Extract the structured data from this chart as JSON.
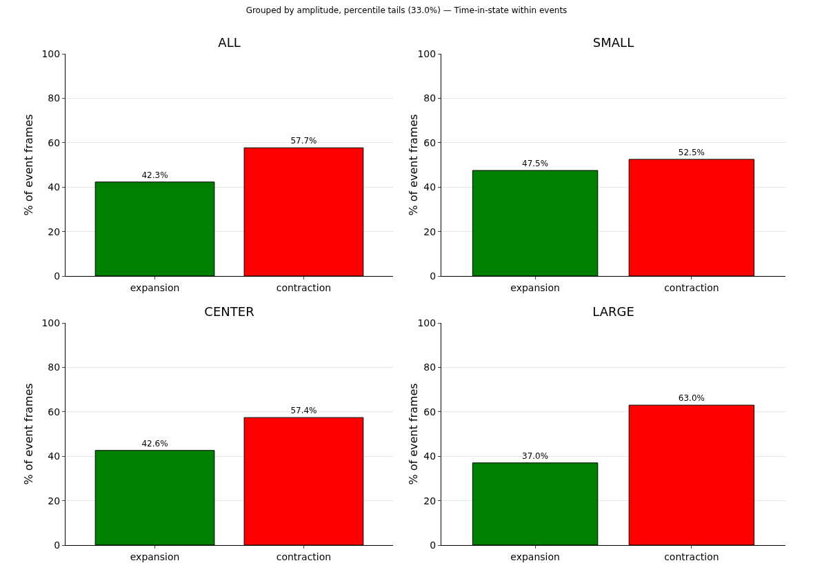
{
  "chart_data": [
    {
      "type": "bar",
      "subtitle": "Grouped by amplitude, percentile tails (33.0%) — Time-in-state within events",
      "title": "ALL",
      "ylabel": "% of event frames",
      "categories": [
        "expansion",
        "contraction"
      ],
      "values": [
        42.3,
        57.7
      ],
      "colors": [
        "#008000",
        "#ff0000"
      ],
      "value_labels": [
        "42.3%",
        "57.7%"
      ],
      "ylim": [
        0,
        100
      ],
      "yticks": [
        0,
        20,
        40,
        60,
        80,
        100
      ],
      "grid": "y"
    },
    {
      "type": "bar",
      "title": "SMALL",
      "ylabel": "% of event frames",
      "categories": [
        "expansion",
        "contraction"
      ],
      "values": [
        47.5,
        52.5
      ],
      "colors": [
        "#008000",
        "#ff0000"
      ],
      "value_labels": [
        "47.5%",
        "52.5%"
      ],
      "ylim": [
        0,
        100
      ],
      "yticks": [
        0,
        20,
        40,
        60,
        80,
        100
      ],
      "grid": "y"
    },
    {
      "type": "bar",
      "title": "CENTER",
      "ylabel": "% of event frames",
      "categories": [
        "expansion",
        "contraction"
      ],
      "values": [
        42.6,
        57.4
      ],
      "colors": [
        "#008000",
        "#ff0000"
      ],
      "value_labels": [
        "42.6%",
        "57.4%"
      ],
      "ylim": [
        0,
        100
      ],
      "yticks": [
        0,
        20,
        40,
        60,
        80,
        100
      ],
      "grid": "y"
    },
    {
      "type": "bar",
      "title": "LARGE",
      "ylabel": "% of event frames",
      "categories": [
        "expansion",
        "contraction"
      ],
      "values": [
        37.0,
        63.0
      ],
      "colors": [
        "#008000",
        "#ff0000"
      ],
      "value_labels": [
        "37.0%",
        "63.0%"
      ],
      "ylim": [
        0,
        100
      ],
      "yticks": [
        0,
        20,
        40,
        60,
        80,
        100
      ],
      "grid": "y"
    }
  ]
}
